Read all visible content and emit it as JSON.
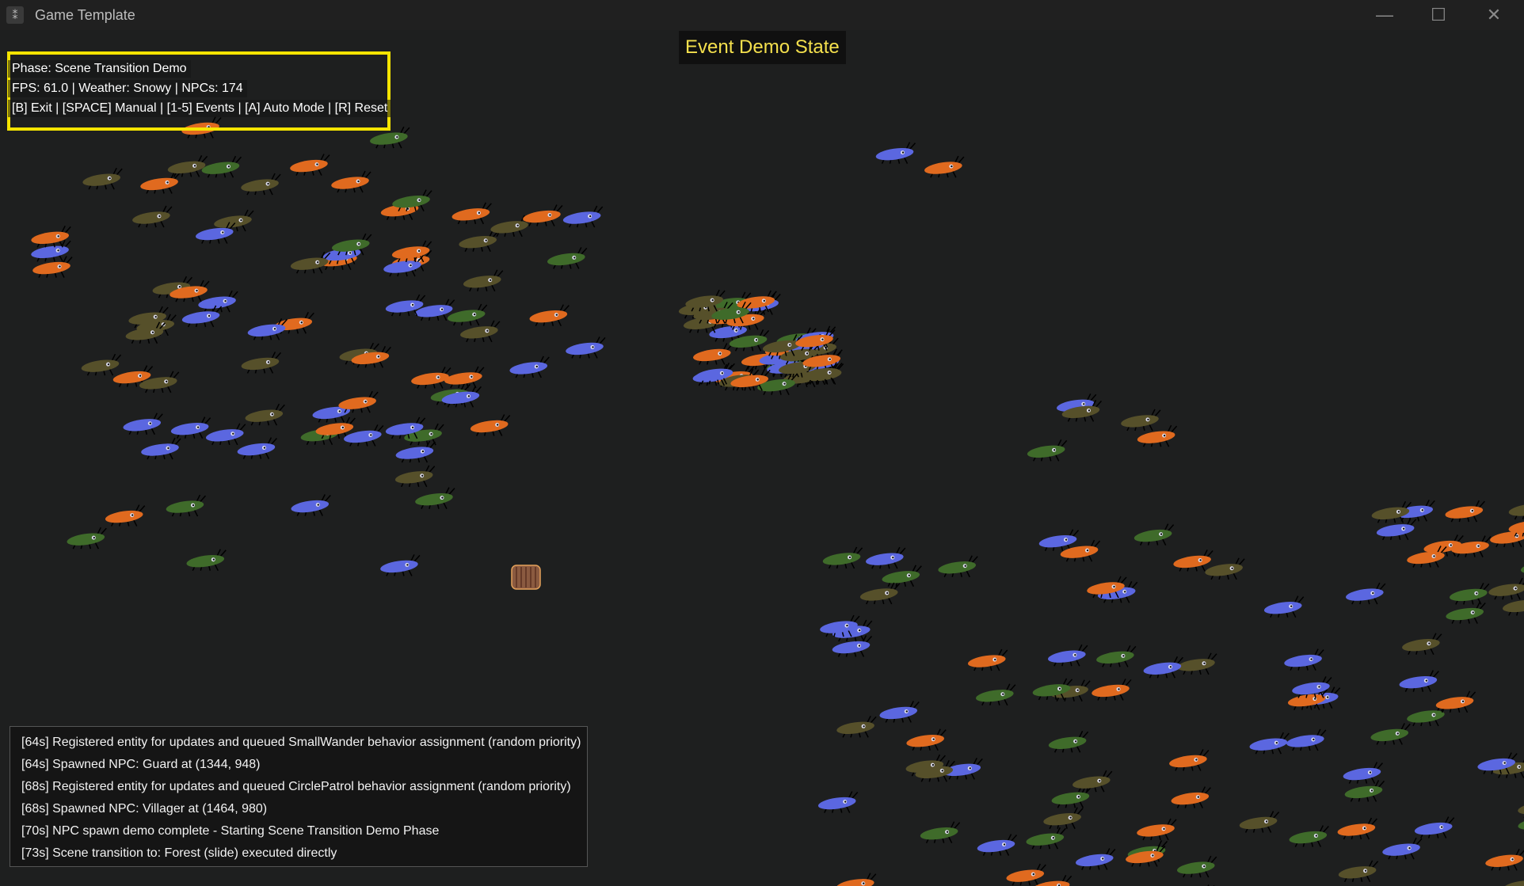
{
  "window": {
    "title": "Game Template",
    "icon": "app-icon",
    "controls": [
      "minimize",
      "maximize",
      "close"
    ]
  },
  "state_title": "Event Demo State",
  "hud": {
    "phase": "Phase: Scene Transition Demo",
    "stats": "FPS: 61.0 | Weather: Snowy | NPCs: 174",
    "controls": "[B] Exit | [SPACE] Manual | [1-5] Events | [A] Auto Mode | [R] Reset"
  },
  "colors": {
    "hud_border": "#f5e400",
    "state_title_text": "#f4e04d",
    "npc_green": "#3f6b2a",
    "npc_blue": "#5b67e0",
    "npc_orange": "#e06a1f",
    "npc_olive": "#56502a",
    "player": "#8a5a40"
  },
  "event_log": [
    "[64s] Registered entity for updates and queued SmallWander behavior assignment (random priority)",
    "[64s] Spawned NPC: Guard at (1344, 948)",
    "[68s] Registered entity for updates and queued CirclePatrol behavior assignment (random priority)",
    "[68s] Spawned NPC: Villager at (1464, 980)",
    "[70s] NPC spawn demo complete - Starting Scene Transition Demo Phase",
    "[73s] Scene transition to: Forest (slide) executed directly"
  ]
}
